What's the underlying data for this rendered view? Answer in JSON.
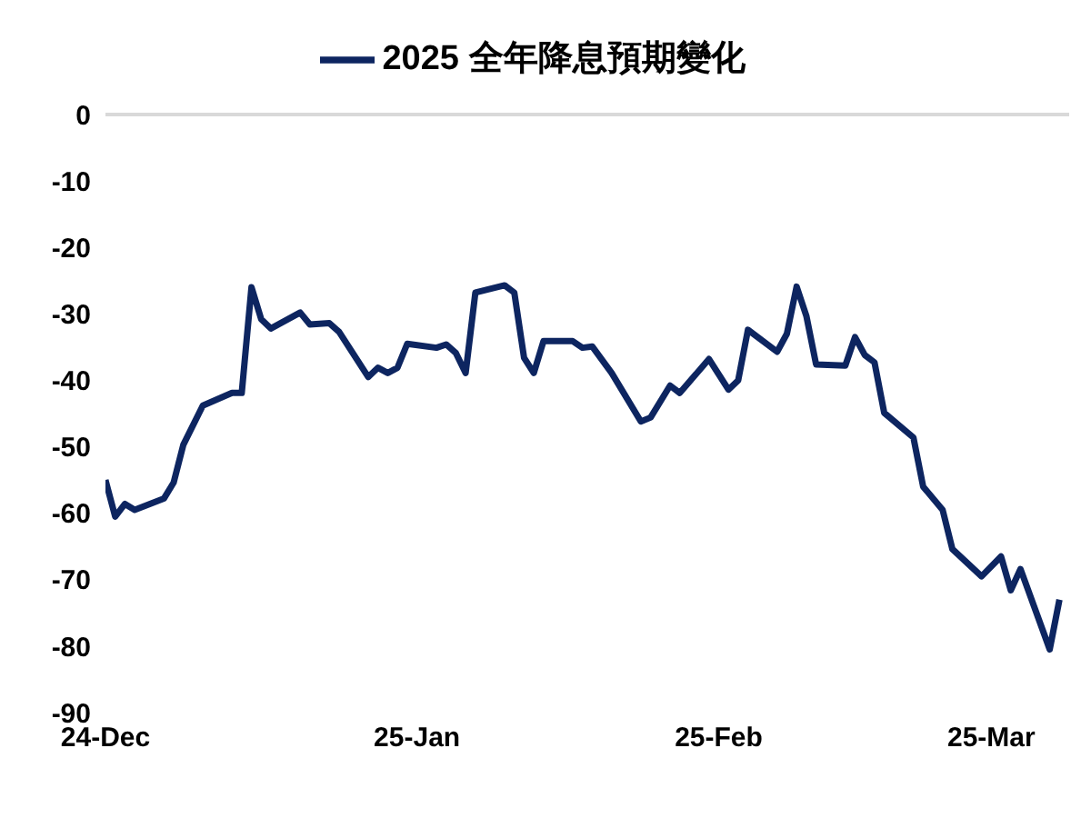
{
  "chart_data": {
    "type": "line",
    "legend": "top",
    "x": [
      "2024-12-24",
      "2024-12-25",
      "2024-12-26",
      "2024-12-27",
      "2024-12-30",
      "2024-12-31",
      "2025-01-01",
      "2025-01-03",
      "2025-01-06",
      "2025-01-07",
      "2025-01-08",
      "2025-01-09",
      "2025-01-10",
      "2025-01-13",
      "2025-01-14",
      "2025-01-16",
      "2025-01-17",
      "2025-01-20",
      "2025-01-21",
      "2025-01-22",
      "2025-01-23",
      "2025-01-24",
      "2025-01-27",
      "2025-01-28",
      "2025-01-29",
      "2025-01-30",
      "2025-01-31",
      "2025-02-03",
      "2025-02-04",
      "2025-02-05",
      "2025-02-06",
      "2025-02-07",
      "2025-02-10",
      "2025-02-11",
      "2025-02-12",
      "2025-02-14",
      "2025-02-17",
      "2025-02-18",
      "2025-02-20",
      "2025-02-21",
      "2025-02-24",
      "2025-02-26",
      "2025-02-27",
      "2025-02-28",
      "2025-03-03",
      "2025-03-04",
      "2025-03-05",
      "2025-03-06",
      "2025-03-07",
      "2025-03-10",
      "2025-03-11",
      "2025-03-12",
      "2025-03-13",
      "2025-03-14",
      "2025-03-17",
      "2025-03-18",
      "2025-03-20",
      "2025-03-21",
      "2025-03-24",
      "2025-03-26",
      "2025-03-27",
      "2025-03-28",
      "2025-03-31",
      "2025-04-01"
    ],
    "series": [
      {
        "name": "2025 全年降息預期變化",
        "color": "#0d2560",
        "values": [
          -55,
          -60.5,
          -58.6,
          -59.5,
          -57.8,
          -55.4,
          -49.7,
          -43.8,
          -41.9,
          -41.9,
          -26,
          -30.8,
          -32.2,
          -29.8,
          -31.6,
          -31.4,
          -32.7,
          -39.5,
          -38.1,
          -38.9,
          -38.1,
          -34.5,
          -35.1,
          -34.6,
          -35.9,
          -38.9,
          -26.8,
          -25.7,
          -26.8,
          -36.6,
          -38.9,
          -34.1,
          -34.1,
          -35.1,
          -34.9,
          -38.9,
          -46.2,
          -45.6,
          -40.8,
          -41.9,
          -36.8,
          -41.4,
          -40,
          -32.4,
          -35.7,
          -33,
          -25.9,
          -30.3,
          -37.6,
          -37.8,
          -33.5,
          -36.2,
          -37.3,
          -44.9,
          -48.6,
          -56,
          -59.5,
          -65.4,
          -69.5,
          -66.5,
          -71.6,
          -68.4,
          -80.5,
          -73
        ]
      }
    ],
    "xlim": [
      "2024-12-24",
      "2025-04-02"
    ],
    "xticks": [
      {
        "value": "2024-12-24",
        "label": "24-Dec"
      },
      {
        "value": "2025-01-25",
        "label": "25-Jan"
      },
      {
        "value": "2025-02-25",
        "label": "25-Feb"
      },
      {
        "value": "2025-03-25",
        "label": "25-Mar"
      }
    ],
    "ylim": [
      -90,
      0
    ],
    "yticks": [
      0,
      -10,
      -20,
      -30,
      -40,
      -50,
      -60,
      -70,
      -80,
      -90
    ],
    "grid": false,
    "marker": "none",
    "line_style": "solid"
  }
}
